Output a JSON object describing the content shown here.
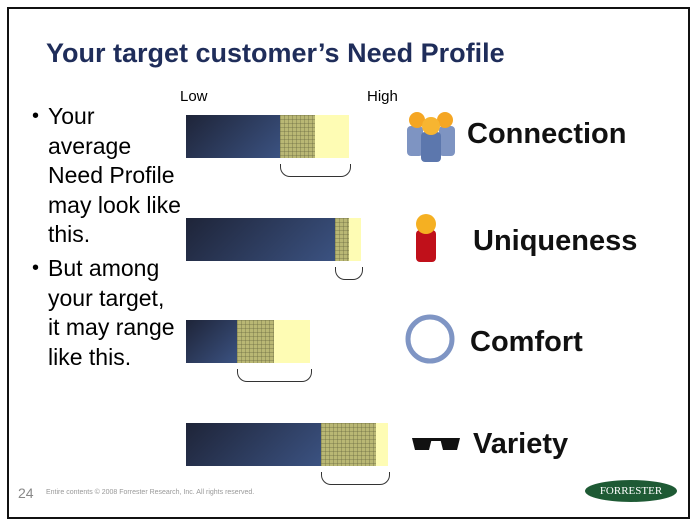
{
  "slide": {
    "title": "Your target customer’s Need Profile",
    "page_number": "24",
    "copyright": "Entire contents © 2008 Forrester Research, Inc. All rights reserved.",
    "logo_text": "FORRESTER"
  },
  "bullets": [
    "Your average Need Profile may look like this.",
    "But among your target, it may range like this."
  ],
  "axis": {
    "low": "Low",
    "high": "High"
  },
  "colors": {
    "title": "#1f2d5a",
    "average": "#2f3f66",
    "range": "#b9b774",
    "high": "#fefcb4",
    "logo": "#1e5a34"
  },
  "needs": [
    {
      "label": "Connection",
      "icon": "people-group-icon",
      "average": 46,
      "range_mid": 63,
      "range_high": 80
    },
    {
      "label": "Uniqueness",
      "icon": "person-standout-icon",
      "average": 73,
      "range_mid": 80,
      "range_high": 86
    },
    {
      "label": "Comfort",
      "icon": "ring-icon",
      "average": 25,
      "range_mid": 43,
      "range_high": 61
    },
    {
      "label": "Variety",
      "icon": "sunglasses-icon",
      "average": 66,
      "range_mid": 93,
      "range_high": 99
    }
  ]
}
